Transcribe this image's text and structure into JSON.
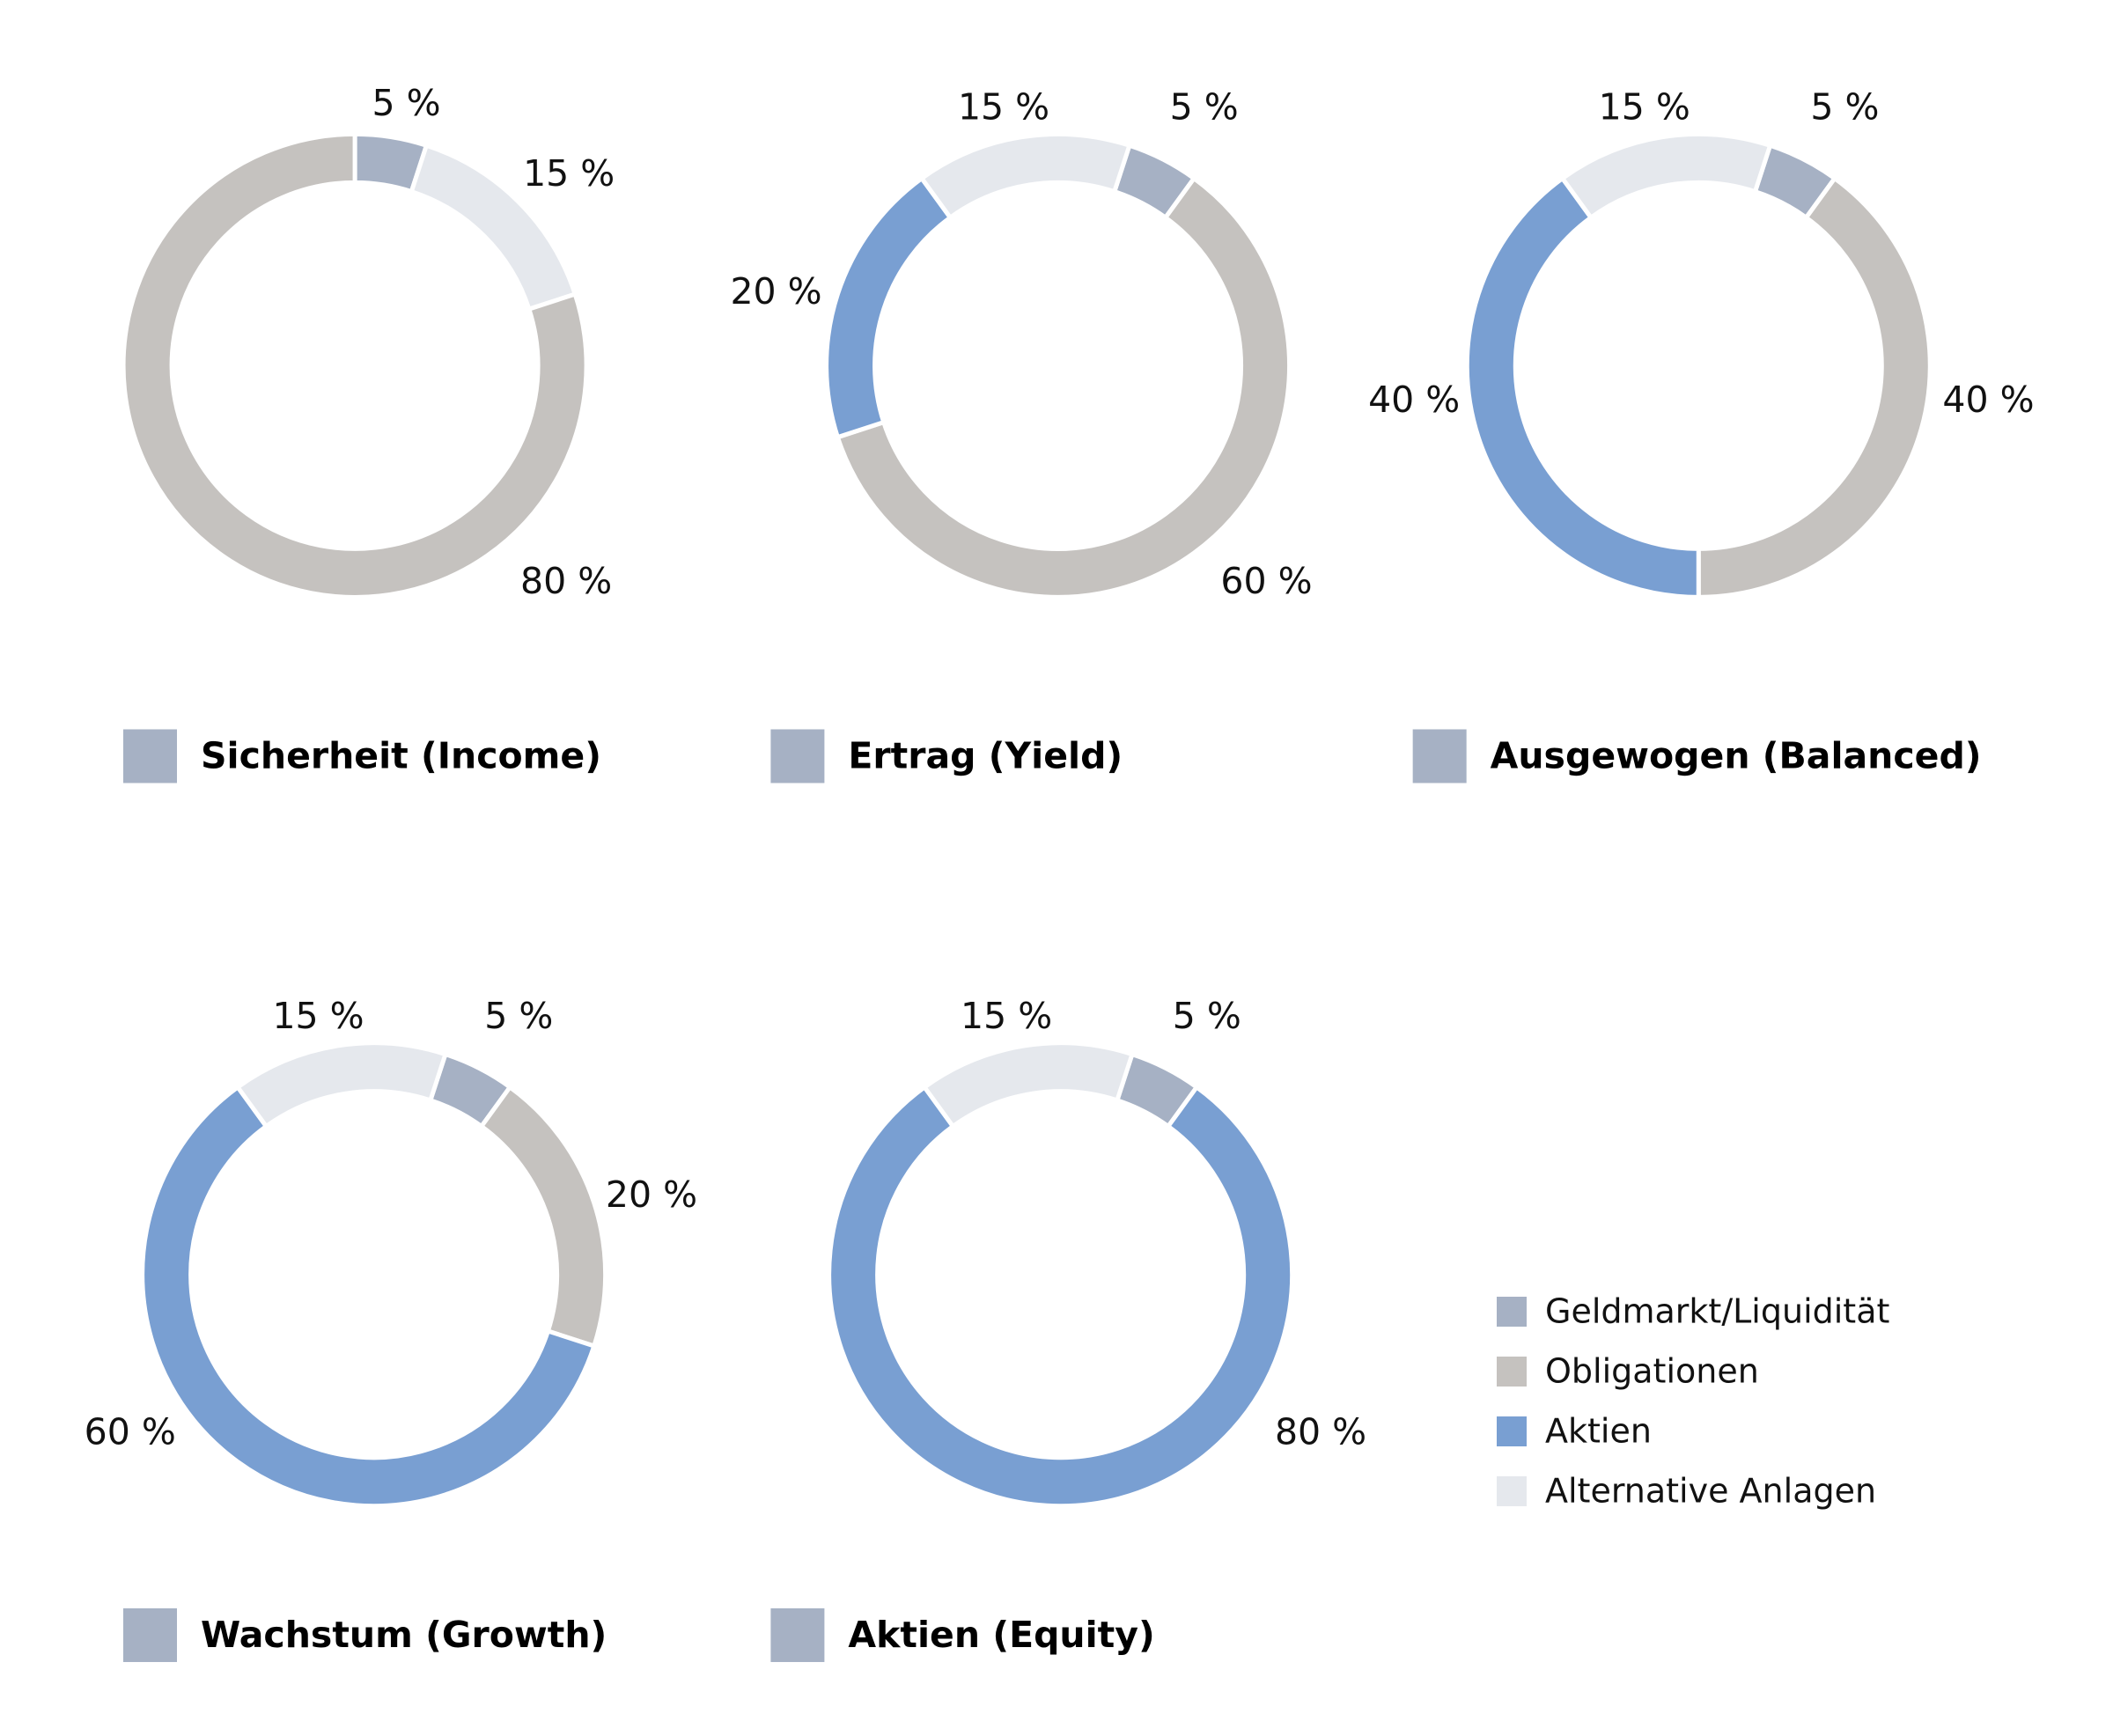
{
  "chart_data": {
    "type": "pie",
    "variant": "donut",
    "legend": {
      "placement": "bottom-right",
      "entries": [
        {
          "key": "geld",
          "label": "Geldmarkt/Liquidität",
          "color": "#a6b1c4"
        },
        {
          "key": "oblig",
          "label": "Obligationen",
          "color": "#c5c2bf"
        },
        {
          "key": "aktien",
          "label": "Aktien",
          "color": "#799fd2"
        },
        {
          "key": "alt",
          "label": "Alternative Anlagen",
          "color": "#e5e8ed"
        }
      ]
    },
    "charts": [
      {
        "title": "Sicherheit (Income)",
        "segments": [
          {
            "key": "geld",
            "value": 5,
            "label": "5 %"
          },
          {
            "key": "alt",
            "value": 15,
            "label": "15 %"
          },
          {
            "key": "oblig",
            "value": 80,
            "label": "80 %"
          }
        ]
      },
      {
        "title": "Ertrag (Yield)",
        "segments": [
          {
            "key": "geld",
            "value": 5,
            "label": "5 %"
          },
          {
            "key": "oblig",
            "value": 60,
            "label": "60 %"
          },
          {
            "key": "aktien",
            "value": 20,
            "label": "20 %"
          },
          {
            "key": "alt",
            "value": 15,
            "label": "15 %"
          }
        ]
      },
      {
        "title": "Ausgewogen (Balanced)",
        "segments": [
          {
            "key": "geld",
            "value": 5,
            "label": "5 %"
          },
          {
            "key": "oblig",
            "value": 40,
            "label": "40 %"
          },
          {
            "key": "aktien",
            "value": 40,
            "label": "40 %"
          },
          {
            "key": "alt",
            "value": 15,
            "label": "15 %"
          }
        ]
      },
      {
        "title": "Wachstum (Growth)",
        "segments": [
          {
            "key": "geld",
            "value": 5,
            "label": "5 %"
          },
          {
            "key": "oblig",
            "value": 20,
            "label": "20 %"
          },
          {
            "key": "aktien",
            "value": 60,
            "label": "60 %"
          },
          {
            "key": "alt",
            "value": 15,
            "label": "15 %"
          }
        ]
      },
      {
        "title": "Aktien (Equity)",
        "segments": [
          {
            "key": "geld",
            "value": 5,
            "label": "5 %"
          },
          {
            "key": "aktien",
            "value": 80,
            "label": "80 %"
          },
          {
            "key": "alt",
            "value": 15,
            "label": "15 %"
          }
        ]
      }
    ]
  }
}
